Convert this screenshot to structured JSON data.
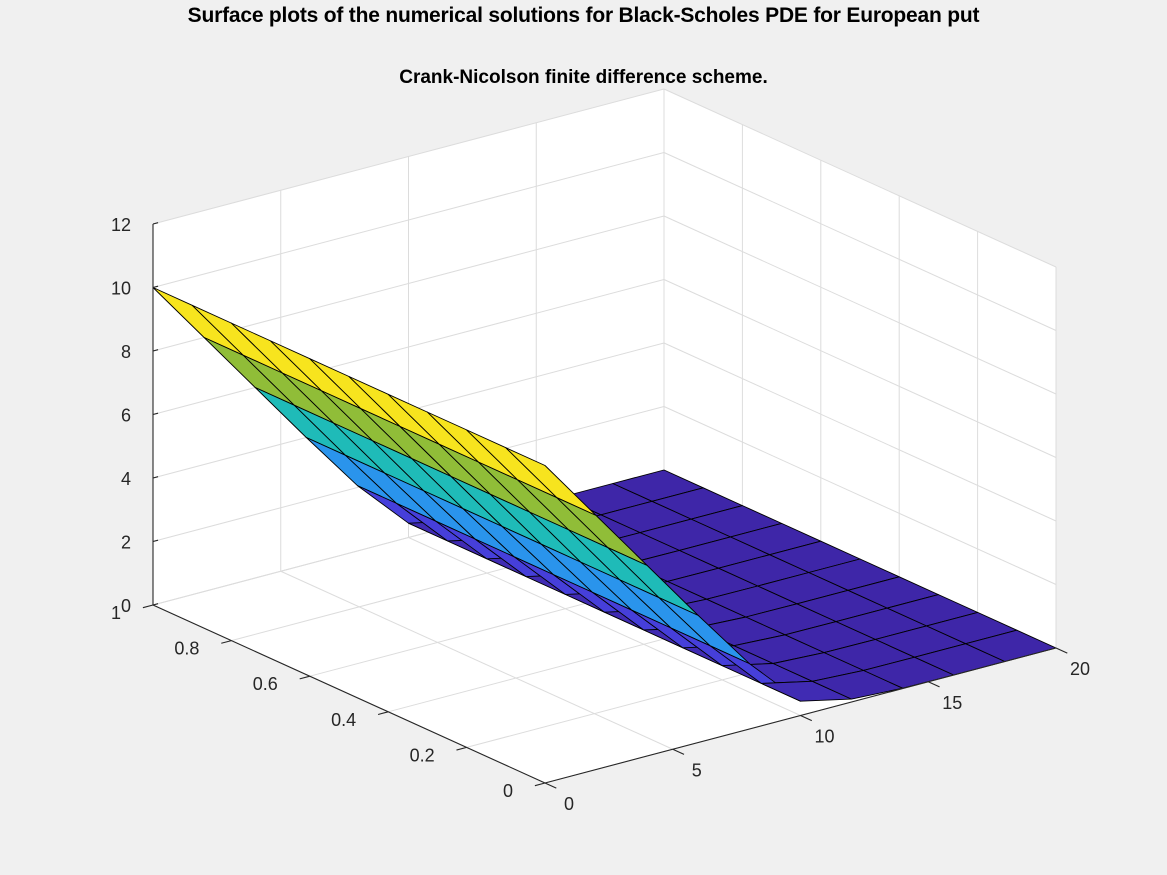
{
  "chart_data": {
    "type": "surface",
    "title": "Surface plots of the numerical solutions for Black-Scholes PDE for European put",
    "subtitle": "Crank-Nicolson finite difference scheme.",
    "xlabel": "",
    "ylabel": "",
    "zlabel": "",
    "xlim": [
      0,
      20
    ],
    "ylim": [
      0,
      1
    ],
    "zlim": [
      0,
      12
    ],
    "x_ticks": [
      0,
      5,
      10,
      15,
      20
    ],
    "y_ticks": [
      0,
      0.2,
      0.4,
      0.6,
      0.8,
      1
    ],
    "z_ticks": [
      0,
      2,
      4,
      6,
      8,
      10,
      12
    ],
    "x_tick_labels": [
      "0",
      "5",
      "10",
      "15",
      "20"
    ],
    "y_tick_labels": [
      "0",
      "0.2",
      "0.4",
      "0.6",
      "0.8",
      "1"
    ],
    "z_tick_labels": [
      "0",
      "2",
      "4",
      "6",
      "8",
      "10",
      "12"
    ],
    "grid": true,
    "colormap": "parula",
    "colormap_stops": [
      "#3e26a8",
      "#4743e1",
      "#2c8ff1",
      "#1bb5ca",
      "#22c0a6",
      "#9cbd2c",
      "#f6da25",
      "#f9fb0e"
    ],
    "x": [
      0,
      2,
      4,
      6,
      8,
      10,
      12,
      14,
      16,
      18,
      20
    ],
    "y": [
      0,
      0.1,
      0.2,
      0.3,
      0.4,
      0.5,
      0.6,
      0.7,
      0.8,
      0.9,
      1
    ],
    "z": [
      [
        10,
        8,
        6,
        4,
        2.06,
        0.45,
        0.09,
        0.01,
        0,
        0,
        0
      ],
      [
        10,
        8,
        6,
        4,
        2.06,
        0.45,
        0.09,
        0.01,
        0,
        0,
        0
      ],
      [
        10,
        8,
        6,
        4,
        2.06,
        0.45,
        0.09,
        0.01,
        0,
        0,
        0
      ],
      [
        10,
        8,
        6,
        4,
        2.06,
        0.45,
        0.09,
        0.01,
        0,
        0,
        0
      ],
      [
        10,
        8,
        6,
        4,
        2.06,
        0.45,
        0.09,
        0.01,
        0,
        0,
        0
      ],
      [
        10,
        8,
        6,
        4,
        2.06,
        0.45,
        0.09,
        0.01,
        0,
        0,
        0
      ],
      [
        10,
        8,
        6,
        4,
        2.06,
        0.45,
        0.09,
        0.01,
        0,
        0,
        0
      ],
      [
        10,
        8,
        6,
        4,
        2.06,
        0.45,
        0.09,
        0.01,
        0,
        0,
        0
      ],
      [
        10,
        8,
        6,
        4,
        2.06,
        0.45,
        0.09,
        0.01,
        0,
        0,
        0
      ],
      [
        10,
        8,
        6,
        4,
        2.06,
        0.45,
        0.09,
        0.01,
        0,
        0,
        0
      ],
      [
        10,
        8,
        6,
        4,
        2.06,
        0.45,
        0.09,
        0.01,
        0,
        0,
        0
      ]
    ]
  }
}
